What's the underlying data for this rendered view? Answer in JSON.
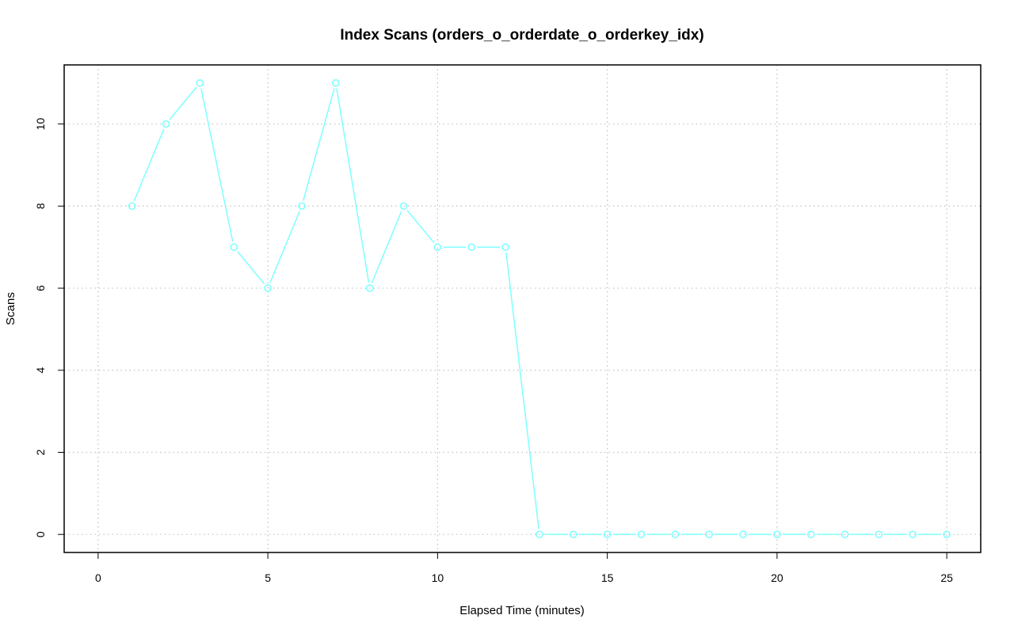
{
  "chart_data": {
    "type": "line",
    "title": "Index Scans (orders_o_orderdate_o_orderkey_idx)",
    "xlabel": "Elapsed Time (minutes)",
    "ylabel": "Scans",
    "x_ticks": [
      0,
      5,
      10,
      15,
      20,
      25
    ],
    "y_ticks": [
      0,
      2,
      4,
      6,
      8,
      10
    ],
    "x": [
      1,
      2,
      3,
      4,
      5,
      6,
      7,
      8,
      9,
      10,
      11,
      12,
      13,
      14,
      15,
      16,
      17,
      18,
      19,
      20,
      21,
      22,
      23,
      24,
      25
    ],
    "y": [
      8,
      10,
      11,
      7,
      6,
      8,
      11,
      6,
      8,
      7,
      7,
      7,
      0,
      0,
      0,
      0,
      0,
      0,
      0,
      0,
      0,
      0,
      0,
      0,
      0
    ],
    "xlim": [
      -1,
      26
    ],
    "ylim": [
      -0.44,
      11.44
    ],
    "grid": true,
    "line_color": "#7fffff",
    "marker": "open-circle"
  }
}
